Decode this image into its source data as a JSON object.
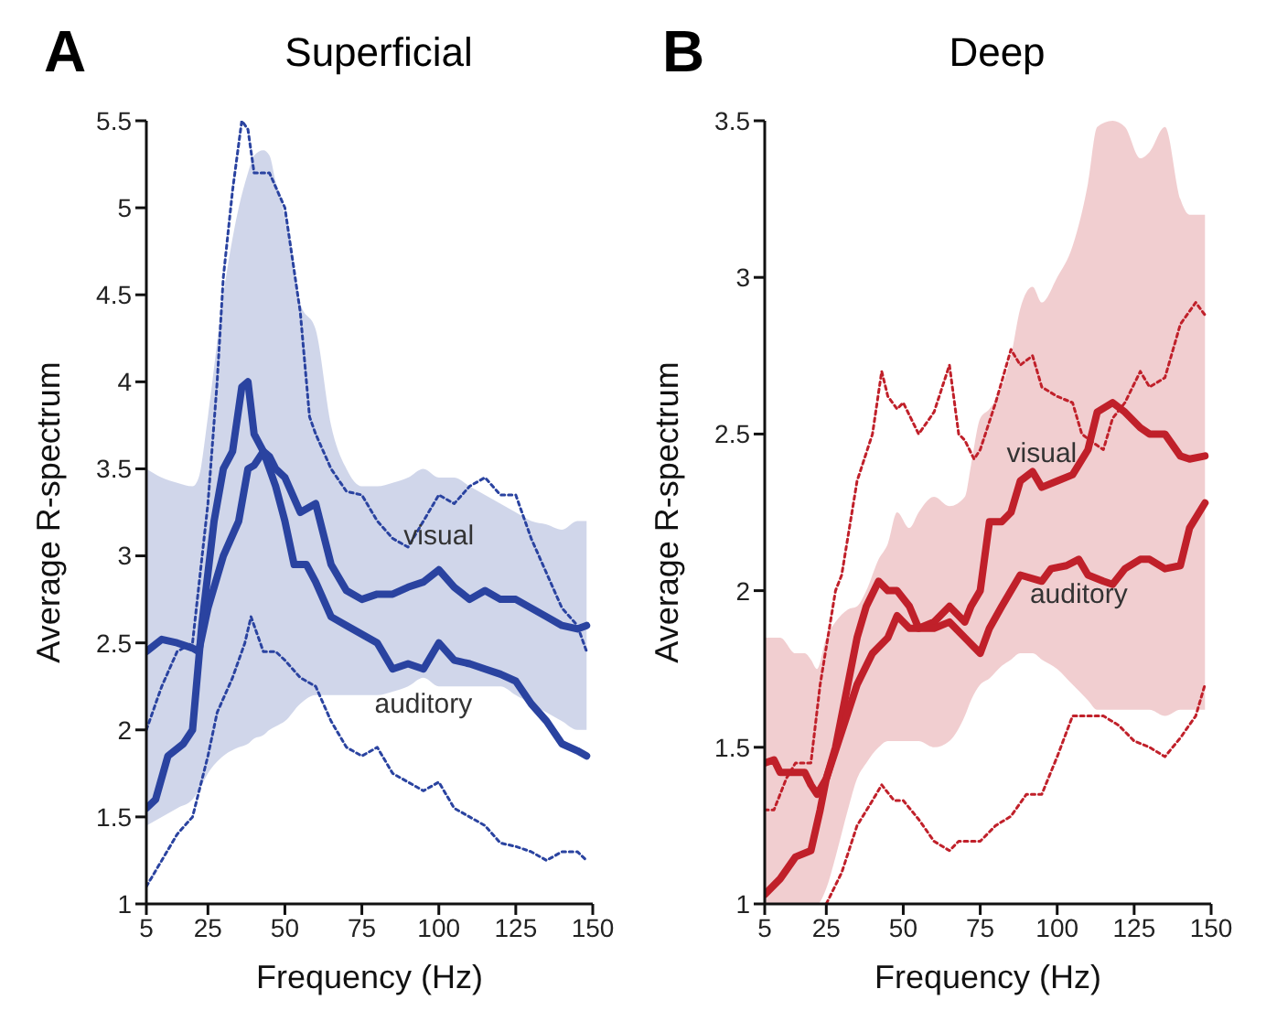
{
  "chart_data": [
    {
      "type": "line",
      "title": "Superficial",
      "annotations": [
        "A"
      ],
      "xlabel": "Frequency (Hz)",
      "ylabel": "Average R-spectrum",
      "xlim": [
        5,
        150
      ],
      "xticks": [
        5,
        25,
        50,
        75,
        100,
        125,
        150
      ],
      "ylim": [
        1,
        5.5
      ],
      "yticks": [
        1,
        1.5,
        2,
        2.5,
        3,
        3.5,
        4,
        4.5,
        5,
        5.5
      ],
      "marker": "none",
      "series": [
        {
          "name": "visual",
          "color": "#2a43a0",
          "line_style": "solid",
          "x": [
            5,
            10,
            15,
            20,
            22,
            25,
            30,
            35,
            38,
            40,
            43,
            45,
            47,
            50,
            55,
            60,
            65,
            70,
            75,
            80,
            85,
            90,
            95,
            100,
            105,
            110,
            115,
            120,
            125,
            130,
            135,
            140,
            145,
            148
          ],
          "values": [
            2.45,
            2.52,
            2.5,
            2.47,
            2.45,
            2.7,
            3.0,
            3.2,
            3.5,
            3.52,
            3.6,
            3.57,
            3.5,
            3.45,
            3.25,
            3.3,
            2.95,
            2.8,
            2.75,
            2.78,
            2.78,
            2.82,
            2.85,
            2.92,
            2.82,
            2.75,
            2.8,
            2.75,
            2.75,
            2.7,
            2.65,
            2.6,
            2.58,
            2.6
          ],
          "upper": [
            3.5,
            3.45,
            3.42,
            3.4,
            3.45,
            3.8,
            4.5,
            5.0,
            5.2,
            5.3,
            5.33,
            5.3,
            5.15,
            4.95,
            4.45,
            4.3,
            3.75,
            3.5,
            3.4,
            3.4,
            3.42,
            3.45,
            3.5,
            3.45,
            3.45,
            3.4,
            3.35,
            3.3,
            3.25,
            3.2,
            3.18,
            3.15,
            3.2,
            3.2
          ],
          "lower": [
            1.45,
            1.5,
            1.55,
            1.6,
            1.65,
            1.75,
            1.85,
            1.9,
            1.92,
            1.95,
            1.97,
            2.0,
            2.02,
            2.05,
            2.15,
            2.2,
            2.2,
            2.2,
            2.2,
            2.2,
            2.22,
            2.25,
            2.3,
            2.25,
            2.25,
            2.25,
            2.25,
            2.25,
            2.2,
            2.15,
            2.1,
            2.05,
            2.0,
            2.0
          ]
        },
        {
          "name": "auditory",
          "color": "#2a43a0",
          "line_style": "solid",
          "x": [
            5,
            8,
            12,
            17,
            20,
            23,
            27,
            30,
            33,
            36,
            38,
            40,
            43,
            47,
            50,
            53,
            57,
            60,
            65,
            70,
            75,
            80,
            85,
            90,
            95,
            100,
            105,
            110,
            115,
            120,
            125,
            130,
            135,
            140,
            145,
            148
          ],
          "values": [
            1.55,
            1.6,
            1.85,
            1.92,
            2.0,
            2.6,
            3.2,
            3.5,
            3.6,
            3.97,
            4.0,
            3.7,
            3.6,
            3.4,
            3.2,
            2.95,
            2.95,
            2.85,
            2.65,
            2.6,
            2.55,
            2.5,
            2.35,
            2.38,
            2.35,
            2.5,
            2.4,
            2.38,
            2.35,
            2.32,
            2.28,
            2.15,
            2.05,
            1.92,
            1.88,
            1.85
          ]
        },
        {
          "color": "#2a43a0",
          "line_style": "dotted",
          "x": [
            5,
            10,
            15,
            20,
            25,
            28,
            30,
            33,
            36,
            38,
            40,
            45,
            50,
            55,
            58,
            60,
            65,
            70,
            75,
            80,
            85,
            90,
            95,
            100,
            105,
            110,
            115,
            120,
            125,
            130,
            135,
            140,
            145,
            148
          ],
          "values": [
            2.0,
            2.25,
            2.45,
            2.5,
            3.3,
            4.0,
            4.6,
            5.1,
            5.5,
            5.45,
            5.2,
            5.2,
            5.0,
            4.4,
            3.8,
            3.7,
            3.5,
            3.37,
            3.35,
            3.2,
            3.1,
            3.05,
            3.2,
            3.35,
            3.3,
            3.4,
            3.45,
            3.35,
            3.35,
            3.1,
            2.9,
            2.7,
            2.6,
            2.45
          ]
        },
        {
          "color": "#2a43a0",
          "line_style": "dotted",
          "x": [
            5,
            10,
            15,
            20,
            25,
            28,
            33,
            37,
            39,
            43,
            47,
            50,
            55,
            60,
            65,
            70,
            75,
            80,
            85,
            90,
            95,
            100,
            105,
            110,
            115,
            120,
            125,
            130,
            135,
            140,
            145,
            148
          ],
          "values": [
            1.1,
            1.25,
            1.4,
            1.5,
            1.85,
            2.1,
            2.3,
            2.5,
            2.65,
            2.45,
            2.45,
            2.4,
            2.3,
            2.25,
            2.05,
            1.9,
            1.85,
            1.9,
            1.75,
            1.7,
            1.65,
            1.7,
            1.55,
            1.5,
            1.45,
            1.35,
            1.33,
            1.3,
            1.25,
            1.3,
            1.3,
            1.25
          ]
        }
      ]
    },
    {
      "type": "line",
      "title": "Deep",
      "annotations": [
        "B"
      ],
      "xlabel": "Frequency (Hz)",
      "ylabel": "Average R-spectrum",
      "xlim": [
        5,
        150
      ],
      "xticks": [
        5,
        25,
        50,
        75,
        100,
        125,
        150
      ],
      "ylim": [
        1,
        3.5
      ],
      "yticks": [
        1,
        1.5,
        2,
        2.5,
        3,
        3.5
      ],
      "marker": "none",
      "series": [
        {
          "name": "visual",
          "color": "#c0202a",
          "line_style": "solid",
          "x": [
            5,
            8,
            10,
            15,
            18,
            20,
            22,
            25,
            28,
            32,
            35,
            38,
            42,
            45,
            48,
            52,
            55,
            60,
            65,
            70,
            72,
            75,
            78,
            82,
            85,
            88,
            92,
            95,
            100,
            105,
            110,
            113,
            118,
            122,
            127,
            130,
            135,
            140,
            143,
            148
          ],
          "values": [
            1.45,
            1.46,
            1.42,
            1.42,
            1.42,
            1.38,
            1.35,
            1.4,
            1.5,
            1.7,
            1.85,
            1.95,
            2.03,
            2.0,
            2.0,
            1.95,
            1.88,
            1.9,
            1.95,
            1.9,
            1.95,
            2.0,
            2.22,
            2.22,
            2.25,
            2.35,
            2.38,
            2.33,
            2.35,
            2.37,
            2.45,
            2.57,
            2.6,
            2.57,
            2.52,
            2.5,
            2.5,
            2.43,
            2.42,
            2.43
          ],
          "upper": [
            1.85,
            1.85,
            1.85,
            1.8,
            1.8,
            1.78,
            1.75,
            1.85,
            1.9,
            1.94,
            1.95,
            2.0,
            2.1,
            2.15,
            2.25,
            2.2,
            2.25,
            2.3,
            2.27,
            2.3,
            2.4,
            2.55,
            2.58,
            2.65,
            2.75,
            2.9,
            2.97,
            2.92,
            3.0,
            3.1,
            3.3,
            3.48,
            3.5,
            3.48,
            3.38,
            3.4,
            3.48,
            3.25,
            3.2,
            3.2
          ],
          "lower": [
            1.0,
            1.0,
            1.0,
            1.0,
            1.0,
            1.0,
            1.0,
            1.05,
            1.15,
            1.3,
            1.4,
            1.45,
            1.5,
            1.52,
            1.52,
            1.52,
            1.52,
            1.5,
            1.52,
            1.6,
            1.65,
            1.7,
            1.72,
            1.76,
            1.78,
            1.8,
            1.8,
            1.78,
            1.75,
            1.7,
            1.65,
            1.62,
            1.62,
            1.62,
            1.62,
            1.62,
            1.6,
            1.62,
            1.62,
            1.62
          ]
        },
        {
          "name": "auditory",
          "color": "#c0202a",
          "line_style": "solid",
          "x": [
            5,
            10,
            15,
            20,
            23,
            25,
            30,
            35,
            40,
            45,
            48,
            52,
            55,
            60,
            65,
            70,
            75,
            78,
            82,
            88,
            95,
            98,
            103,
            107,
            110,
            115,
            118,
            122,
            127,
            130,
            135,
            140,
            143,
            148
          ],
          "values": [
            1.03,
            1.08,
            1.15,
            1.17,
            1.3,
            1.4,
            1.55,
            1.7,
            1.8,
            1.85,
            1.92,
            1.88,
            1.88,
            1.88,
            1.9,
            1.85,
            1.8,
            1.88,
            1.95,
            2.05,
            2.03,
            2.07,
            2.08,
            2.1,
            2.05,
            2.03,
            2.02,
            2.07,
            2.1,
            2.1,
            2.07,
            2.08,
            2.2,
            2.28
          ]
        },
        {
          "color": "#c0202a",
          "line_style": "dotted",
          "x": [
            5,
            8,
            12,
            15,
            20,
            23,
            28,
            30,
            35,
            40,
            43,
            45,
            48,
            50,
            55,
            60,
            65,
            68,
            70,
            73,
            75,
            80,
            85,
            88,
            92,
            95,
            100,
            105,
            108,
            112,
            115,
            118,
            122,
            127,
            130,
            135,
            140,
            145,
            148
          ],
          "values": [
            1.3,
            1.3,
            1.4,
            1.45,
            1.45,
            1.7,
            2.0,
            2.05,
            2.35,
            2.5,
            2.7,
            2.62,
            2.58,
            2.6,
            2.5,
            2.57,
            2.72,
            2.5,
            2.48,
            2.42,
            2.45,
            2.6,
            2.77,
            2.72,
            2.75,
            2.65,
            2.62,
            2.6,
            2.5,
            2.47,
            2.45,
            2.55,
            2.6,
            2.7,
            2.65,
            2.68,
            2.85,
            2.92,
            2.88
          ]
        },
        {
          "color": "#c0202a",
          "line_style": "dotted",
          "x": [
            25,
            30,
            35,
            40,
            43,
            47,
            50,
            55,
            60,
            65,
            68,
            72,
            75,
            80,
            85,
            90,
            95,
            100,
            105,
            110,
            115,
            120,
            125,
            130,
            135,
            140,
            145,
            148
          ],
          "values": [
            1.0,
            1.1,
            1.25,
            1.33,
            1.38,
            1.33,
            1.33,
            1.27,
            1.2,
            1.17,
            1.2,
            1.2,
            1.2,
            1.25,
            1.28,
            1.35,
            1.35,
            1.47,
            1.6,
            1.6,
            1.6,
            1.57,
            1.52,
            1.5,
            1.47,
            1.53,
            1.6,
            1.7
          ]
        }
      ]
    }
  ]
}
